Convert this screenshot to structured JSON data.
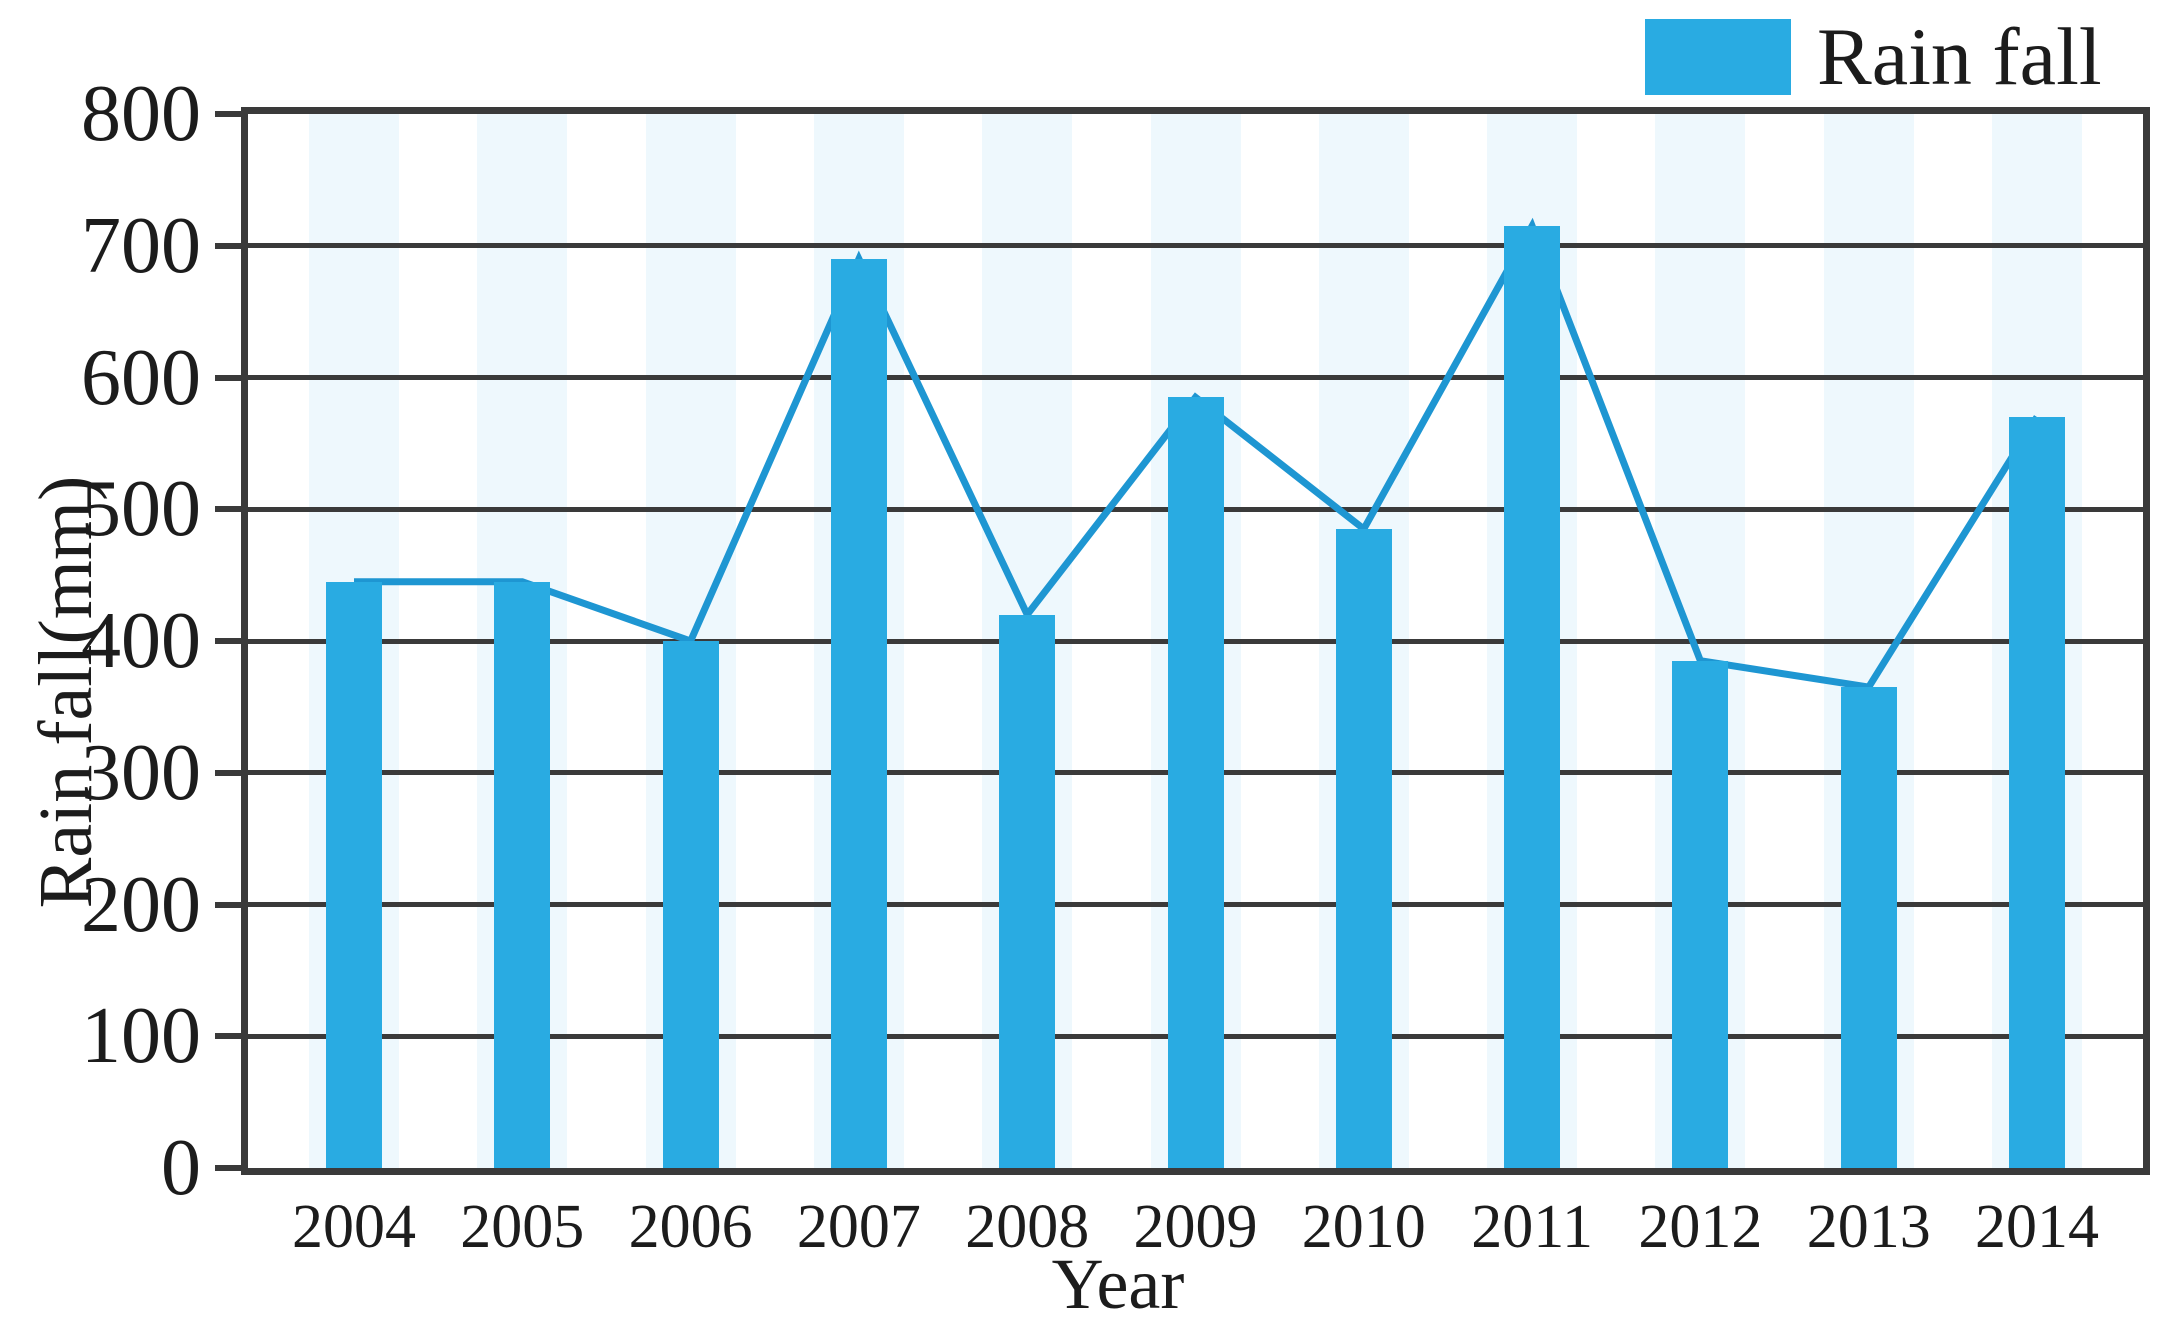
{
  "legend": {
    "label": "Rain fall"
  },
  "colors": {
    "bar": "#29abe2",
    "bar_halo": "rgba(41,171,226,0.08)",
    "line": "#1e96d2",
    "axis": "#3a3a3a",
    "text": "#1c1c1c",
    "background": "#ffffff"
  },
  "chart_data": {
    "type": "bar",
    "title": "",
    "categories": [
      "2004",
      "2005",
      "2006",
      "2007",
      "2008",
      "2009",
      "2010",
      "2011",
      "2012",
      "2013",
      "2014"
    ],
    "series": [
      {
        "name": "Rain fall",
        "type": "bar",
        "values": [
          445,
          445,
          400,
          690,
          420,
          585,
          485,
          715,
          385,
          365,
          570
        ]
      },
      {
        "name": "Rain fall",
        "type": "line",
        "values": [
          445,
          445,
          400,
          690,
          420,
          585,
          485,
          715,
          385,
          365,
          570
        ]
      }
    ],
    "xlabel": "Year",
    "ylabel": "Rain fall(mm)",
    "ylim": [
      0,
      800
    ],
    "ytick_step": 100,
    "grid": "horizontal",
    "legend_position": "top-right",
    "legend_entries": [
      "Rain fall"
    ]
  }
}
